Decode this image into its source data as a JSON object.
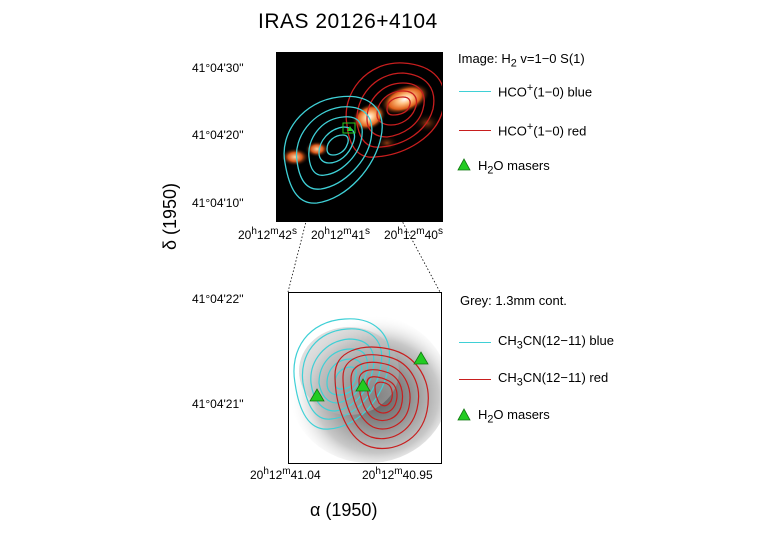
{
  "title": "IRAS 20126+4104",
  "top_panel": {
    "dec_ticks": [
      "41°04'30''",
      "41°04'20''",
      "41°04'10''"
    ],
    "ra_ticks": [
      "20h12m42s",
      "20h12m41s",
      "20h12m40s"
    ],
    "legend": {
      "image_label": "Image: H2 v=1−0 S(1)",
      "blue_label": "HCO+(1−0) blue",
      "red_label": "HCO+(1−0) red",
      "maser_label": "H2O masers"
    }
  },
  "bottom_panel": {
    "dec_ticks": [
      "41°04'22''",
      "41°04'21''"
    ],
    "ra_ticks": [
      "20h12m41.04",
      "20h12m40.95"
    ],
    "legend": {
      "grey_label": "Grey: 1.3mm cont.",
      "blue_label": "CH3CN(12−11) blue",
      "red_label": "CH3CN(12−11) red",
      "maser_label": "H2O masers"
    }
  },
  "ylabel": "δ (1950)",
  "xlabel": "α (1950)",
  "colors": {
    "blue_contour": "#3fd0d6",
    "red_contour": "#c81e1e",
    "maser": "#22cc22",
    "h2_emission": "#ff7a1a"
  }
}
